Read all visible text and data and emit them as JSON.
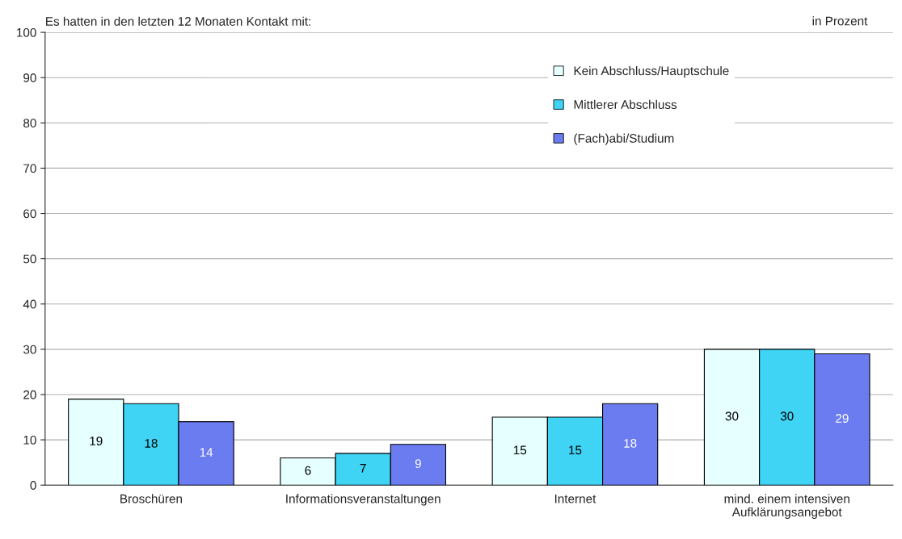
{
  "chart_data": {
    "type": "bar",
    "title": "Es hatten in den letzten 12 Monaten Kontakt mit:",
    "annotations": [
      "in Prozent"
    ],
    "categories": [
      "Broschüren",
      "Informationsveranstaltungen",
      "Internet",
      "mind. einem intensiven\nAufklärungsangebot"
    ],
    "series": [
      {
        "name": "Kein Abschluss/Hauptschule",
        "color": "#e6ffff",
        "values": [
          19,
          6,
          15,
          30
        ]
      },
      {
        "name": "Mittlerer Abschluss",
        "color": "#3fd4f4",
        "values": [
          18,
          7,
          15,
          30
        ]
      },
      {
        "name": "(Fach)abi/Studium",
        "color": "#6a7cf0",
        "values": [
          14,
          9,
          18,
          29
        ]
      }
    ],
    "ylim": [
      0,
      100
    ],
    "yticks": [
      0,
      10,
      20,
      30,
      40,
      50,
      60,
      70,
      80,
      90,
      100
    ],
    "grid": "y",
    "legend": "top right",
    "data_labels": true
  }
}
